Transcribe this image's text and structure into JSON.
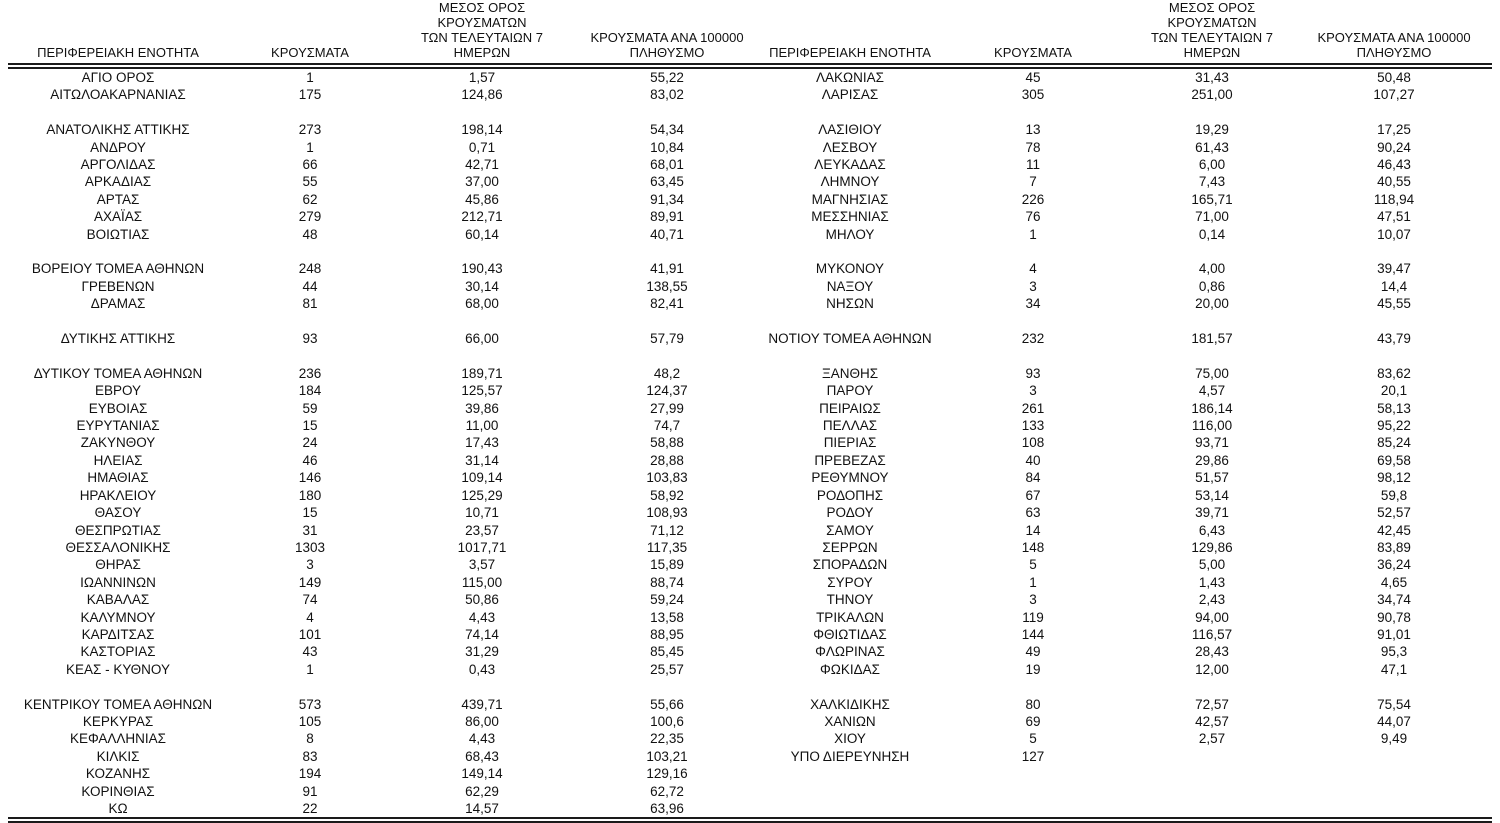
{
  "table": {
    "columns": {
      "region": "ΠΕΡΙΦΕΡΕΙΑΚΗ ΕΝΟΤΗΤΑ",
      "cases": "ΚΡΟΥΣΜΑΤΑ",
      "avg7": "ΜΕΣΟΣ ΟΡΟΣ ΚΡΟΥΣΜΑΤΩΝ\nΤΩΝ ΤΕΛΕΥΤΑΙΩΝ 7 ΗΜΕΡΩΝ",
      "per100k": "ΚΡΟΥΣΜΑΤΑ ΑΝΑ 100000\nΠΛΗΘΥΣΜΟ"
    },
    "left_rows": [
      {
        "region": "ΑΓΙΟ ΟΡΟΣ",
        "cases": "1",
        "avg7": "1,57",
        "per100k": "55,22"
      },
      {
        "region": "ΑΙΤΩΛΟΑΚΑΡΝΑΝΙΑΣ",
        "cases": "175",
        "avg7": "124,86",
        "per100k": "83,02"
      },
      null,
      {
        "region": "ΑΝΑΤΟΛΙΚΗΣ ΑΤΤΙΚΗΣ",
        "cases": "273",
        "avg7": "198,14",
        "per100k": "54,34"
      },
      {
        "region": "ΑΝΔΡΟΥ",
        "cases": "1",
        "avg7": "0,71",
        "per100k": "10,84"
      },
      {
        "region": "ΑΡΓΟΛΙΔΑΣ",
        "cases": "66",
        "avg7": "42,71",
        "per100k": "68,01"
      },
      {
        "region": "ΑΡΚΑΔΙΑΣ",
        "cases": "55",
        "avg7": "37,00",
        "per100k": "63,45"
      },
      {
        "region": "ΑΡΤΑΣ",
        "cases": "62",
        "avg7": "45,86",
        "per100k": "91,34"
      },
      {
        "region": "ΑΧΑΪΑΣ",
        "cases": "279",
        "avg7": "212,71",
        "per100k": "89,91"
      },
      {
        "region": "ΒΟΙΩΤΙΑΣ",
        "cases": "48",
        "avg7": "60,14",
        "per100k": "40,71"
      },
      null,
      {
        "region": "ΒΟΡΕΙΟΥ ΤΟΜΕΑ ΑΘΗΝΩΝ",
        "cases": "248",
        "avg7": "190,43",
        "per100k": "41,91"
      },
      {
        "region": "ΓΡΕΒΕΝΩΝ",
        "cases": "44",
        "avg7": "30,14",
        "per100k": "138,55"
      },
      {
        "region": "ΔΡΑΜΑΣ",
        "cases": "81",
        "avg7": "68,00",
        "per100k": "82,41"
      },
      null,
      {
        "region": "ΔΥΤΙΚΗΣ ΑΤΤΙΚΗΣ",
        "cases": "93",
        "avg7": "66,00",
        "per100k": "57,79"
      },
      null,
      {
        "region": "ΔΥΤΙΚΟΥ ΤΟΜΕΑ ΑΘΗΝΩΝ",
        "cases": "236",
        "avg7": "189,71",
        "per100k": "48,2"
      },
      {
        "region": "ΕΒΡΟΥ",
        "cases": "184",
        "avg7": "125,57",
        "per100k": "124,37"
      },
      {
        "region": "ΕΥΒΟΙΑΣ",
        "cases": "59",
        "avg7": "39,86",
        "per100k": "27,99"
      },
      {
        "region": "ΕΥΡΥΤΑΝΙΑΣ",
        "cases": "15",
        "avg7": "11,00",
        "per100k": "74,7"
      },
      {
        "region": "ΖΑΚΥΝΘΟΥ",
        "cases": "24",
        "avg7": "17,43",
        "per100k": "58,88"
      },
      {
        "region": "ΗΛΕΙΑΣ",
        "cases": "46",
        "avg7": "31,14",
        "per100k": "28,88"
      },
      {
        "region": "ΗΜΑΘΙΑΣ",
        "cases": "146",
        "avg7": "109,14",
        "per100k": "103,83"
      },
      {
        "region": "ΗΡΑΚΛΕΙΟΥ",
        "cases": "180",
        "avg7": "125,29",
        "per100k": "58,92"
      },
      {
        "region": "ΘΑΣΟΥ",
        "cases": "15",
        "avg7": "10,71",
        "per100k": "108,93"
      },
      {
        "region": "ΘΕΣΠΡΩΤΙΑΣ",
        "cases": "31",
        "avg7": "23,57",
        "per100k": "71,12"
      },
      {
        "region": "ΘΕΣΣΑΛΟΝΙΚΗΣ",
        "cases": "1303",
        "avg7": "1017,71",
        "per100k": "117,35"
      },
      {
        "region": "ΘΗΡΑΣ",
        "cases": "3",
        "avg7": "3,57",
        "per100k": "15,89"
      },
      {
        "region": "ΙΩΑΝΝΙΝΩΝ",
        "cases": "149",
        "avg7": "115,00",
        "per100k": "88,74"
      },
      {
        "region": "ΚΑΒΑΛΑΣ",
        "cases": "74",
        "avg7": "50,86",
        "per100k": "59,24"
      },
      {
        "region": "ΚΑΛΥΜΝΟΥ",
        "cases": "4",
        "avg7": "4,43",
        "per100k": "13,58"
      },
      {
        "region": "ΚΑΡΔΙΤΣΑΣ",
        "cases": "101",
        "avg7": "74,14",
        "per100k": "88,95"
      },
      {
        "region": "ΚΑΣΤΟΡΙΑΣ",
        "cases": "43",
        "avg7": "31,29",
        "per100k": "85,45"
      },
      {
        "region": "ΚΕΑΣ - ΚΥΘΝΟΥ",
        "cases": "1",
        "avg7": "0,43",
        "per100k": "25,57"
      },
      null,
      {
        "region": "ΚΕΝΤΡΙΚΟΥ ΤΟΜΕΑ ΑΘΗΝΩΝ",
        "cases": "573",
        "avg7": "439,71",
        "per100k": "55,66"
      },
      {
        "region": "ΚΕΡΚΥΡΑΣ",
        "cases": "105",
        "avg7": "86,00",
        "per100k": "100,6"
      },
      {
        "region": "ΚΕΦΑΛΛΗΝΙΑΣ",
        "cases": "8",
        "avg7": "4,43",
        "per100k": "22,35"
      },
      {
        "region": "ΚΙΛΚΙΣ",
        "cases": "83",
        "avg7": "68,43",
        "per100k": "103,21"
      },
      {
        "region": "ΚΟΖΑΝΗΣ",
        "cases": "194",
        "avg7": "149,14",
        "per100k": "129,16"
      },
      {
        "region": "ΚΟΡΙΝΘΙΑΣ",
        "cases": "91",
        "avg7": "62,29",
        "per100k": "62,72"
      },
      {
        "region": "ΚΩ",
        "cases": "22",
        "avg7": "14,57",
        "per100k": "63,96"
      }
    ],
    "right_rows": [
      {
        "region": "ΛΑΚΩΝΙΑΣ",
        "cases": "45",
        "avg7": "31,43",
        "per100k": "50,48"
      },
      {
        "region": "ΛΑΡΙΣΑΣ",
        "cases": "305",
        "avg7": "251,00",
        "per100k": "107,27"
      },
      null,
      {
        "region": "ΛΑΣΙΘΙΟΥ",
        "cases": "13",
        "avg7": "19,29",
        "per100k": "17,25"
      },
      {
        "region": "ΛΕΣΒΟΥ",
        "cases": "78",
        "avg7": "61,43",
        "per100k": "90,24"
      },
      {
        "region": "ΛΕΥΚΑΔΑΣ",
        "cases": "11",
        "avg7": "6,00",
        "per100k": "46,43"
      },
      {
        "region": "ΛΗΜΝΟΥ",
        "cases": "7",
        "avg7": "7,43",
        "per100k": "40,55"
      },
      {
        "region": "ΜΑΓΝΗΣΙΑΣ",
        "cases": "226",
        "avg7": "165,71",
        "per100k": "118,94"
      },
      {
        "region": "ΜΕΣΣΗΝΙΑΣ",
        "cases": "76",
        "avg7": "71,00",
        "per100k": "47,51"
      },
      {
        "region": "ΜΗΛΟΥ",
        "cases": "1",
        "avg7": "0,14",
        "per100k": "10,07"
      },
      null,
      {
        "region": "ΜΥΚΟΝΟΥ",
        "cases": "4",
        "avg7": "4,00",
        "per100k": "39,47"
      },
      {
        "region": "ΝΑΞΟΥ",
        "cases": "3",
        "avg7": "0,86",
        "per100k": "14,4"
      },
      {
        "region": "ΝΗΣΩΝ",
        "cases": "34",
        "avg7": "20,00",
        "per100k": "45,55"
      },
      null,
      {
        "region": "ΝΟΤΙΟΥ ΤΟΜΕΑ ΑΘΗΝΩΝ",
        "cases": "232",
        "avg7": "181,57",
        "per100k": "43,79"
      },
      null,
      {
        "region": "ΞΑΝΘΗΣ",
        "cases": "93",
        "avg7": "75,00",
        "per100k": "83,62"
      },
      {
        "region": "ΠΑΡΟΥ",
        "cases": "3",
        "avg7": "4,57",
        "per100k": "20,1"
      },
      {
        "region": "ΠΕΙΡΑΙΩΣ",
        "cases": "261",
        "avg7": "186,14",
        "per100k": "58,13"
      },
      {
        "region": "ΠΕΛΛΑΣ",
        "cases": "133",
        "avg7": "116,00",
        "per100k": "95,22"
      },
      {
        "region": "ΠΙΕΡΙΑΣ",
        "cases": "108",
        "avg7": "93,71",
        "per100k": "85,24"
      },
      {
        "region": "ΠΡΕΒΕΖΑΣ",
        "cases": "40",
        "avg7": "29,86",
        "per100k": "69,58"
      },
      {
        "region": "ΡΕΘΥΜΝΟΥ",
        "cases": "84",
        "avg7": "51,57",
        "per100k": "98,12"
      },
      {
        "region": "ΡΟΔΟΠΗΣ",
        "cases": "67",
        "avg7": "53,14",
        "per100k": "59,8"
      },
      {
        "region": "ΡΟΔΟΥ",
        "cases": "63",
        "avg7": "39,71",
        "per100k": "52,57"
      },
      {
        "region": "ΣΑΜΟΥ",
        "cases": "14",
        "avg7": "6,43",
        "per100k": "42,45"
      },
      {
        "region": "ΣΕΡΡΩΝ",
        "cases": "148",
        "avg7": "129,86",
        "per100k": "83,89"
      },
      {
        "region": "ΣΠΟΡΑΔΩΝ",
        "cases": "5",
        "avg7": "5,00",
        "per100k": "36,24"
      },
      {
        "region": "ΣΥΡΟΥ",
        "cases": "1",
        "avg7": "1,43",
        "per100k": "4,65"
      },
      {
        "region": "ΤΗΝΟΥ",
        "cases": "3",
        "avg7": "2,43",
        "per100k": "34,74"
      },
      {
        "region": "ΤΡΙΚΑΛΩΝ",
        "cases": "119",
        "avg7": "94,00",
        "per100k": "90,78"
      },
      {
        "region": "ΦΘΙΩΤΙΔΑΣ",
        "cases": "144",
        "avg7": "116,57",
        "per100k": "91,01"
      },
      {
        "region": "ΦΛΩΡΙΝΑΣ",
        "cases": "49",
        "avg7": "28,43",
        "per100k": "95,3"
      },
      {
        "region": "ΦΩΚΙΔΑΣ",
        "cases": "19",
        "avg7": "12,00",
        "per100k": "47,1"
      },
      null,
      {
        "region": "ΧΑΛΚΙΔΙΚΗΣ",
        "cases": "80",
        "avg7": "72,57",
        "per100k": "75,54"
      },
      {
        "region": "ΧΑΝΙΩΝ",
        "cases": "69",
        "avg7": "42,57",
        "per100k": "44,07"
      },
      {
        "region": "ΧΙΟΥ",
        "cases": "5",
        "avg7": "2,57",
        "per100k": "9,49"
      },
      {
        "region": "ΥΠΟ ΔΙΕΡΕΥΝΗΣΗ",
        "cases": "127",
        "avg7": "",
        "per100k": ""
      },
      null,
      null,
      null
    ]
  }
}
